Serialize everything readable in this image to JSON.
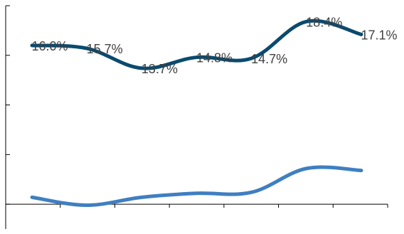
{
  "chart_data": {
    "type": "line",
    "title": "",
    "xlabel": "",
    "ylabel": "",
    "x": [
      1,
      2,
      3,
      4,
      5,
      6,
      7
    ],
    "series": [
      {
        "values": [
          16.0,
          15.7,
          13.7,
          14.8,
          14.7,
          18.4,
          17.1
        ],
        "labels": [
          "16.0%",
          "15.7%",
          "13.7%",
          "14.8%",
          "14.7%",
          "18.4%",
          "17.1%"
        ],
        "color": "#0b4a6f"
      },
      {
        "values": [
          0.7,
          -0.1,
          0.7,
          1.1,
          1.2,
          3.6,
          3.4
        ],
        "color": "#3f7fc1"
      }
    ],
    "ylim": [
      -2.5,
      20.0
    ],
    "y_tick_values": [
      0,
      5,
      10,
      15,
      20
    ],
    "x_tick_count": 7,
    "grid": false,
    "legend": "none",
    "colors": {
      "axis": "#000000",
      "label": "#404040"
    }
  }
}
